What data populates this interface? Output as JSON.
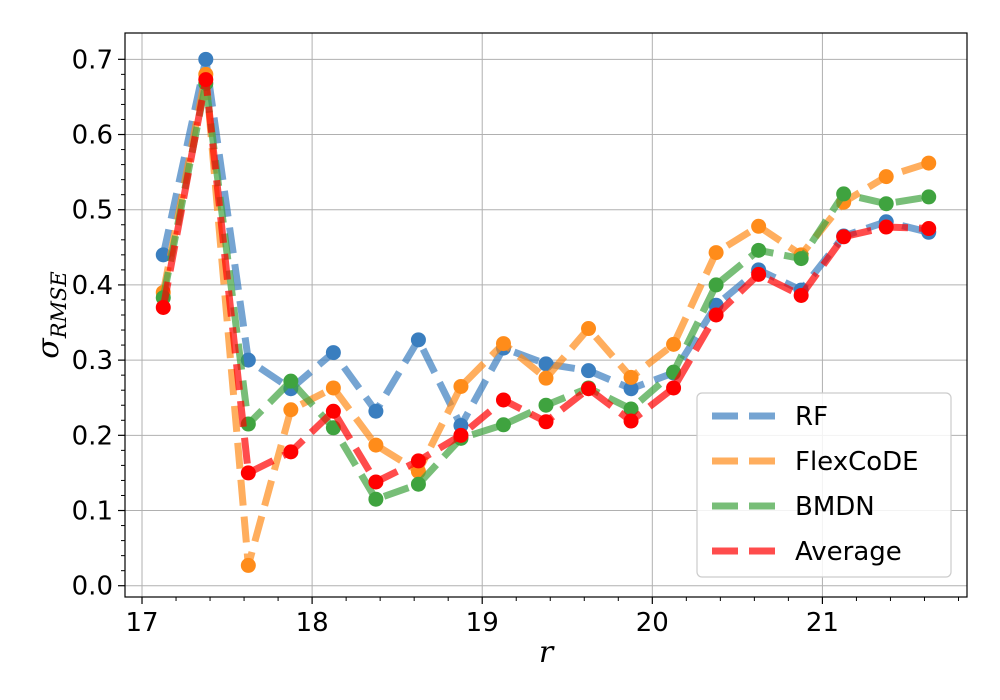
{
  "chart_data": {
    "type": "line",
    "title": "",
    "xlabel": "r",
    "ylabel_main": "σ",
    "ylabel_sub": "RMSE",
    "xlim": [
      16.9,
      21.85
    ],
    "ylim": [
      -0.015,
      0.735
    ],
    "xticks": [
      17,
      18,
      19,
      20,
      21
    ],
    "yticks": [
      0.0,
      0.1,
      0.2,
      0.3,
      0.4,
      0.5,
      0.6,
      0.7
    ],
    "xtick_labels": [
      "17",
      "18",
      "19",
      "20",
      "21"
    ],
    "ytick_labels": [
      "0.0",
      "0.1",
      "0.2",
      "0.3",
      "0.4",
      "0.5",
      "0.6",
      "0.7"
    ],
    "grid": true,
    "legend_position": "bottom-right",
    "x": [
      17.125,
      17.375,
      17.625,
      17.875,
      18.125,
      18.375,
      18.625,
      18.875,
      19.125,
      19.375,
      19.625,
      19.875,
      20.125,
      20.375,
      20.625,
      20.875,
      21.125,
      21.375,
      21.625
    ],
    "series": [
      {
        "name": "RF",
        "color": "#3a7ebf",
        "values": [
          0.44,
          0.7,
          0.3,
          0.262,
          0.31,
          0.232,
          0.327,
          0.213,
          0.316,
          0.295,
          0.286,
          0.262,
          0.283,
          0.373,
          0.42,
          0.393,
          0.465,
          0.484,
          0.47
        ]
      },
      {
        "name": "FlexCoDE",
        "color": "#ff8c1a",
        "values": [
          0.39,
          0.68,
          0.027,
          0.234,
          0.263,
          0.187,
          0.152,
          0.265,
          0.322,
          0.276,
          0.342,
          0.277,
          0.321,
          0.443,
          0.478,
          0.44,
          0.51,
          0.544,
          0.562
        ]
      },
      {
        "name": "BMDN",
        "color": "#3fa33f",
        "values": [
          0.383,
          0.668,
          0.215,
          0.272,
          0.21,
          0.115,
          0.135,
          0.196,
          0.214,
          0.24,
          0.263,
          0.235,
          0.284,
          0.4,
          0.446,
          0.435,
          0.521,
          0.508,
          0.517
        ]
      },
      {
        "name": "Average",
        "color": "#ff0000",
        "values": [
          0.37,
          0.673,
          0.15,
          0.178,
          0.232,
          0.138,
          0.166,
          0.2,
          0.247,
          0.218,
          0.262,
          0.219,
          0.263,
          0.36,
          0.414,
          0.386,
          0.464,
          0.477,
          0.475
        ]
      }
    ]
  }
}
